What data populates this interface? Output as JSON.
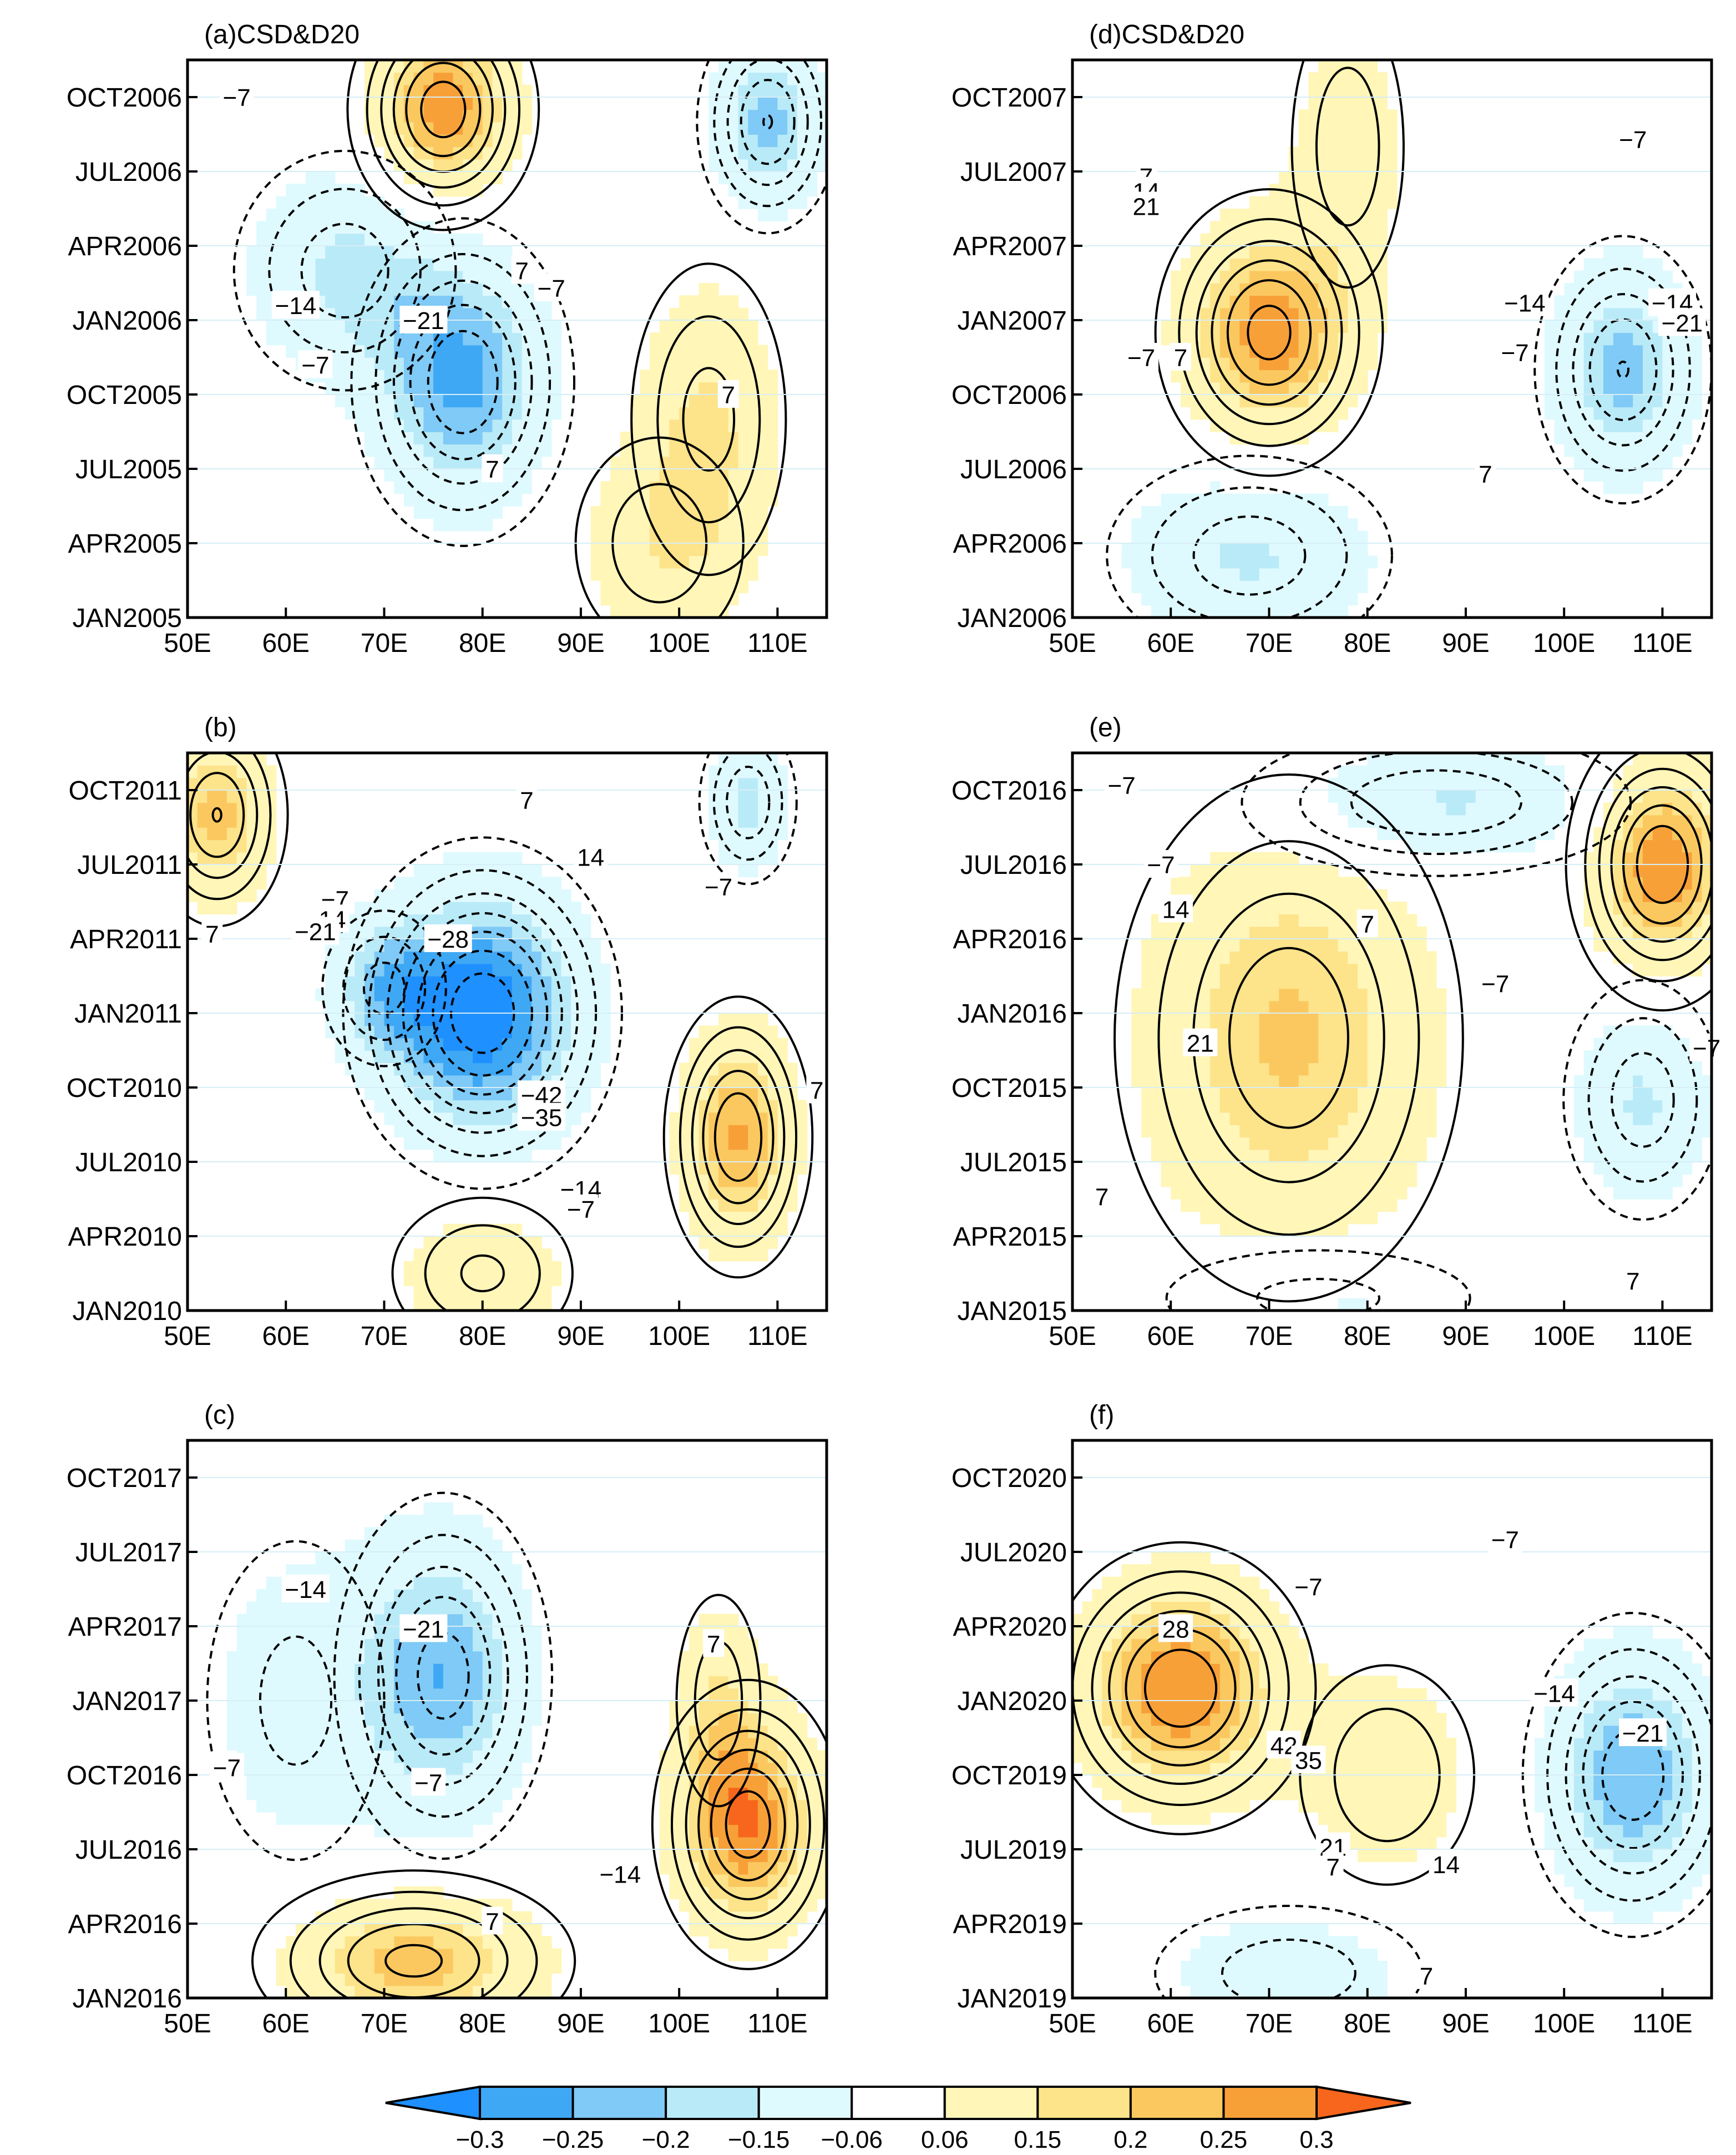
{
  "figure": {
    "background": "#ffffff"
  },
  "colors": {
    "shade_scale": [
      "#1e90ff",
      "#3fa8f5",
      "#7fcaf6",
      "#b9eaf8",
      "#dffaff",
      "#ffffff",
      "#fff6b8",
      "#fde38a",
      "#fbc860",
      "#f8a038",
      "#f7661c"
    ]
  },
  "chart_data": [
    {
      "type": "heatmap",
      "panel_label": "(a)CSD&D20",
      "title": "(a)CSD&D20",
      "xlabel": "",
      "ylabel": "",
      "x_ticks": [
        "50E",
        "60E",
        "70E",
        "80E",
        "90E",
        "100E",
        "110E"
      ],
      "y_ticks": [
        "JAN2005",
        "APR2005",
        "JUL2005",
        "OCT2005",
        "JAN2006",
        "APR2006",
        "JUL2006",
        "OCT2006"
      ],
      "xlim": [
        50,
        115
      ],
      "ylim_months": [
        0,
        22.5
      ],
      "shading_levels": [
        -0.3,
        -0.25,
        -0.2,
        -0.15,
        -0.06,
        0.06,
        0.15,
        0.2,
        0.25,
        0.3
      ],
      "contour_interval": 7,
      "blobs": [
        {
          "lon": 76,
          "mon": 20.5,
          "amp": 0.29,
          "slon": 5,
          "smon": 2.5
        },
        {
          "lon": 109,
          "mon": 20,
          "amp": -0.22,
          "slon": 4,
          "smon": 2.5
        },
        {
          "lon": 78,
          "mon": 9.5,
          "amp": -0.26,
          "slon": 6,
          "smon": 3.5
        },
        {
          "lon": 66,
          "mon": 14,
          "amp": -0.16,
          "slon": 7,
          "smon": 3
        },
        {
          "lon": 103,
          "mon": 8,
          "amp": 0.15,
          "slon": 5,
          "smon": 4
        },
        {
          "lon": 98,
          "mon": 3,
          "amp": 0.12,
          "slon": 6,
          "smon": 3
        }
      ],
      "contour_labels": [
        {
          "text": "-7",
          "lon": 55,
          "mon": 21
        },
        {
          "text": "-14",
          "lon": 61,
          "mon": 12.6
        },
        {
          "text": "-21",
          "lon": 74,
          "mon": 12
        },
        {
          "text": "-7",
          "lon": 63,
          "mon": 10.2
        },
        {
          "text": "7",
          "lon": 84,
          "mon": 14
        },
        {
          "text": "-7",
          "lon": 87,
          "mon": 13.3
        },
        {
          "text": "7",
          "lon": 105,
          "mon": 9
        },
        {
          "text": "7",
          "lon": 81,
          "mon": 6
        }
      ]
    },
    {
      "type": "heatmap",
      "panel_label": "(b)",
      "title": "(b)",
      "xlabel": "",
      "ylabel": "",
      "x_ticks": [
        "50E",
        "60E",
        "70E",
        "80E",
        "90E",
        "100E",
        "110E"
      ],
      "y_ticks": [
        "JAN2010",
        "APR2010",
        "JUL2010",
        "OCT2010",
        "JAN2011",
        "APR2011",
        "JUL2011",
        "OCT2011"
      ],
      "xlim": [
        50,
        115
      ],
      "ylim_months": [
        0,
        22.5
      ],
      "shading_levels": [
        -0.3,
        -0.25,
        -0.2,
        -0.15,
        -0.06,
        0.06,
        0.15,
        0.2,
        0.25,
        0.3
      ],
      "contour_interval": 7,
      "blobs": [
        {
          "lon": 80,
          "mon": 12,
          "amp": -0.34,
          "slon": 7,
          "smon": 3.5
        },
        {
          "lon": 70,
          "mon": 13,
          "amp": -0.15,
          "slon": 4,
          "smon": 2
        },
        {
          "lon": 53,
          "mon": 20,
          "amp": 0.22,
          "slon": 4,
          "smon": 2.5
        },
        {
          "lon": 106,
          "mon": 7,
          "amp": 0.26,
          "slon": 4,
          "smon": 3
        },
        {
          "lon": 80,
          "mon": 1.5,
          "amp": 0.14,
          "slon": 6,
          "smon": 2
        },
        {
          "lon": 107,
          "mon": 20.5,
          "amp": -0.17,
          "slon": 3,
          "smon": 2
        }
      ],
      "contour_labels": [
        {
          "text": "7",
          "lon": 84.5,
          "mon": 20.6
        },
        {
          "text": "14",
          "lon": 91,
          "mon": 18.3
        },
        {
          "text": "-7",
          "lon": 104,
          "mon": 17.1
        },
        {
          "text": "-7",
          "lon": 65,
          "mon": 16.6
        },
        {
          "text": "-14",
          "lon": 64,
          "mon": 15.8
        },
        {
          "text": "-21",
          "lon": 63,
          "mon": 15.3
        },
        {
          "text": "7",
          "lon": 52.5,
          "mon": 15.2
        },
        {
          "text": "-28",
          "lon": 76.5,
          "mon": 15
        },
        {
          "text": "-42",
          "lon": 86,
          "mon": 8.7
        },
        {
          "text": "-35",
          "lon": 86,
          "mon": 7.8
        },
        {
          "text": "7",
          "lon": 114,
          "mon": 8.9
        },
        {
          "text": "-14",
          "lon": 90,
          "mon": 4.9
        },
        {
          "text": "-7",
          "lon": 90,
          "mon": 4.1
        }
      ]
    },
    {
      "type": "heatmap",
      "panel_label": "(c)",
      "title": "(c)",
      "xlabel": "",
      "ylabel": "",
      "x_ticks": [
        "50E",
        "60E",
        "70E",
        "80E",
        "90E",
        "100E",
        "110E"
      ],
      "y_ticks": [
        "JAN2016",
        "APR2016",
        "JUL2016",
        "OCT2016",
        "JAN2017",
        "APR2017",
        "JUL2017",
        "OCT2017"
      ],
      "xlim": [
        50,
        115
      ],
      "ylim_months": [
        0,
        22.5
      ],
      "shading_levels": [
        -0.3,
        -0.25,
        -0.2,
        -0.15,
        -0.06,
        0.06,
        0.15,
        0.2,
        0.25,
        0.3
      ],
      "contour_interval": 7,
      "blobs": [
        {
          "lon": 76,
          "mon": 13,
          "amp": -0.24,
          "slon": 6,
          "smon": 4
        },
        {
          "lon": 61,
          "mon": 12,
          "amp": -0.1,
          "slon": 7,
          "smon": 5
        },
        {
          "lon": 107,
          "mon": 7,
          "amp": 0.29,
          "slon": 5,
          "smon": 3
        },
        {
          "lon": 73,
          "mon": 1.5,
          "amp": 0.23,
          "slon": 9,
          "smon": 2
        },
        {
          "lon": 104,
          "mon": 12,
          "amp": 0.12,
          "slon": 3,
          "smon": 3
        }
      ],
      "contour_labels": [
        {
          "text": "-14",
          "lon": 62,
          "mon": 16.5
        },
        {
          "text": "-21",
          "lon": 74,
          "mon": 14.9
        },
        {
          "text": "7",
          "lon": 103.5,
          "mon": 14.3
        },
        {
          "text": "-7",
          "lon": 54,
          "mon": 9.3
        },
        {
          "text": "-7",
          "lon": 74.5,
          "mon": 8.7
        },
        {
          "text": "-14",
          "lon": 94,
          "mon": 5
        },
        {
          "text": "7",
          "lon": 81,
          "mon": 3.1
        }
      ]
    },
    {
      "type": "heatmap",
      "panel_label": "(d)CSD&D20",
      "title": "(d)CSD&D20",
      "xlabel": "",
      "ylabel": "",
      "x_ticks": [
        "50E",
        "60E",
        "70E",
        "80E",
        "90E",
        "100E",
        "110E"
      ],
      "y_ticks": [
        "JAN2006",
        "APR2006",
        "JUL2006",
        "OCT2006",
        "JAN2007",
        "APR2007",
        "JUL2007",
        "OCT2007"
      ],
      "xlim": [
        50,
        115
      ],
      "ylim_months": [
        0,
        22.5
      ],
      "shading_levels": [
        -0.3,
        -0.25,
        -0.2,
        -0.15,
        -0.06,
        0.06,
        0.15,
        0.2,
        0.25,
        0.3
      ],
      "contour_interval": 7,
      "blobs": [
        {
          "lon": 70,
          "mon": 11.5,
          "amp": 0.28,
          "slon": 6,
          "smon": 3
        },
        {
          "lon": 78,
          "mon": 19,
          "amp": 0.12,
          "slon": 4,
          "smon": 4
        },
        {
          "lon": 106,
          "mon": 10,
          "amp": -0.22,
          "slon": 5,
          "smon": 3
        },
        {
          "lon": 68,
          "mon": 2.5,
          "amp": -0.16,
          "slon": 9,
          "smon": 2.5
        }
      ],
      "contour_labels": [
        {
          "text": "-7",
          "lon": 107,
          "mon": 19.3
        },
        {
          "text": "7",
          "lon": 57.5,
          "mon": 17.8
        },
        {
          "text": "14",
          "lon": 57.5,
          "mon": 17.2
        },
        {
          "text": "21",
          "lon": 57.5,
          "mon": 16.6
        },
        {
          "text": "-14",
          "lon": 96,
          "mon": 12.7
        },
        {
          "text": "-14",
          "lon": 111,
          "mon": 12.7
        },
        {
          "text": "-21",
          "lon": 112,
          "mon": 11.9
        },
        {
          "text": "-7",
          "lon": 57,
          "mon": 10.5
        },
        {
          "text": "7",
          "lon": 61,
          "mon": 10.5
        },
        {
          "text": "-7",
          "lon": 95,
          "mon": 10.7
        },
        {
          "text": "7",
          "lon": 92,
          "mon": 5.8
        }
      ]
    },
    {
      "type": "heatmap",
      "panel_label": "(e)",
      "title": "(e)",
      "xlabel": "",
      "ylabel": "",
      "x_ticks": [
        "50E",
        "60E",
        "70E",
        "80E",
        "90E",
        "100E",
        "110E"
      ],
      "y_ticks": [
        "JAN2015",
        "APR2015",
        "JUL2015",
        "OCT2015",
        "JAN2016",
        "APR2016",
        "JUL2016",
        "OCT2016"
      ],
      "xlim": [
        50,
        115
      ],
      "ylim_months": [
        0,
        22.5
      ],
      "shading_levels": [
        -0.3,
        -0.25,
        -0.2,
        -0.15,
        -0.06,
        0.06,
        0.15,
        0.2,
        0.25,
        0.3
      ],
      "contour_interval": 7,
      "blobs": [
        {
          "lon": 72,
          "mon": 11,
          "amp": 0.21,
          "slon": 10,
          "smon": 6
        },
        {
          "lon": 110,
          "mon": 18,
          "amp": 0.3,
          "slon": 5,
          "smon": 3
        },
        {
          "lon": 87,
          "mon": 20.5,
          "amp": -0.17,
          "slon": 12,
          "smon": 1.8
        },
        {
          "lon": 108,
          "mon": 8.5,
          "amp": -0.16,
          "slon": 5,
          "smon": 3
        },
        {
          "lon": 75,
          "mon": 0.5,
          "amp": -0.1,
          "slon": 12,
          "smon": 1.5
        }
      ],
      "contour_labels": [
        {
          "text": "-7",
          "lon": 55,
          "mon": 21.2
        },
        {
          "text": "-7",
          "lon": 59,
          "mon": 18
        },
        {
          "text": "14",
          "lon": 60.5,
          "mon": 16.2
        },
        {
          "text": "7",
          "lon": 80,
          "mon": 15.6
        },
        {
          "text": "-7",
          "lon": 93,
          "mon": 13.2
        },
        {
          "text": "21",
          "lon": 63,
          "mon": 10.8
        },
        {
          "text": "7",
          "lon": 53,
          "mon": 4.6
        },
        {
          "text": "-7",
          "lon": 114.5,
          "mon": 10.6
        },
        {
          "text": "7",
          "lon": 107,
          "mon": 1.2
        }
      ]
    },
    {
      "type": "heatmap",
      "panel_label": "(f)",
      "title": "(f)",
      "xlabel": "",
      "ylabel": "",
      "x_ticks": [
        "50E",
        "60E",
        "70E",
        "80E",
        "90E",
        "100E",
        "110E"
      ],
      "y_ticks": [
        "JAN2019",
        "APR2019",
        "JUL2019",
        "OCT2019",
        "JAN2020",
        "APR2020",
        "JUL2020",
        "OCT2020"
      ],
      "xlim": [
        50,
        115
      ],
      "ylim_months": [
        0,
        22.5
      ],
      "shading_levels": [
        -0.3,
        -0.25,
        -0.2,
        -0.15,
        -0.06,
        0.06,
        0.15,
        0.2,
        0.25,
        0.3
      ],
      "contour_interval": 7,
      "blobs": [
        {
          "lon": 61,
          "mon": 12.5,
          "amp": 0.3,
          "slon": 7,
          "smon": 3
        },
        {
          "lon": 82,
          "mon": 9,
          "amp": 0.13,
          "slon": 6,
          "smon": 3
        },
        {
          "lon": 107,
          "mon": 9,
          "amp": -0.25,
          "slon": 6,
          "smon": 3.5
        },
        {
          "lon": 72,
          "mon": 1,
          "amp": -0.11,
          "slon": 10,
          "smon": 2
        }
      ],
      "contour_labels": [
        {
          "text": "-7",
          "lon": 94,
          "mon": 18.5
        },
        {
          "text": "-7",
          "lon": 74,
          "mon": 16.6
        },
        {
          "text": "28",
          "lon": 60.5,
          "mon": 14.9
        },
        {
          "text": "-14",
          "lon": 99,
          "mon": 12.3
        },
        {
          "text": "-21",
          "lon": 108,
          "mon": 10.7
        },
        {
          "text": "42",
          "lon": 71.5,
          "mon": 10.2
        },
        {
          "text": "35",
          "lon": 74,
          "mon": 9.6
        },
        {
          "text": "21",
          "lon": 76.5,
          "mon": 6.1
        },
        {
          "text": "7",
          "lon": 76.5,
          "mon": 5.3
        },
        {
          "text": "14",
          "lon": 88,
          "mon": 5.4
        },
        {
          "text": "7",
          "lon": 86,
          "mon": 0.9
        }
      ]
    }
  ],
  "colorbar": {
    "labels": [
      "-0.3",
      "-0.25",
      "-0.2",
      "-0.15",
      "-0.06",
      "0.06",
      "0.15",
      "0.2",
      "0.25",
      "0.3"
    ]
  }
}
